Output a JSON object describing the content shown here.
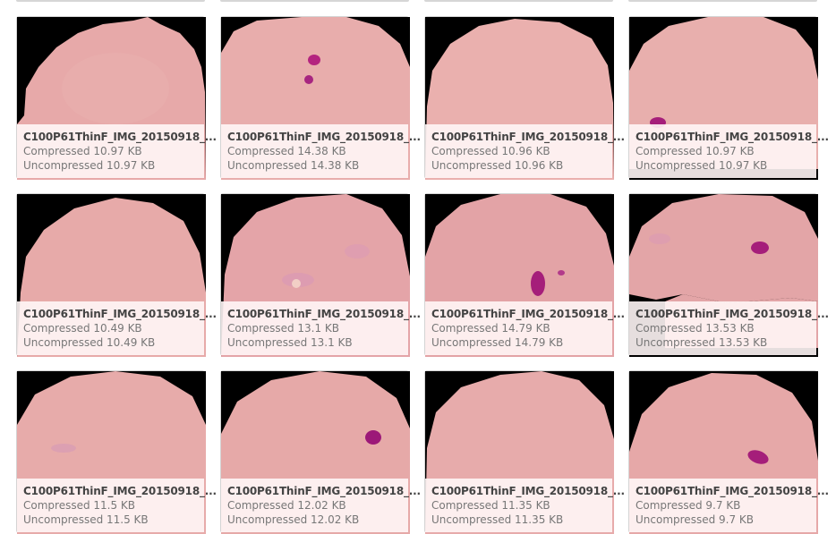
{
  "gallery": {
    "items": [
      {
        "name": "C100P61ThinF_IMG_20150918_...",
        "compressed": "Compressed 10.97 KB",
        "uncompressed": "Uncompressed 10.97 KB",
        "parasite_spots": 0
      },
      {
        "name": "C100P61ThinF_IMG_20150918_...",
        "compressed": "Compressed 14.38 KB",
        "uncompressed": "Uncompressed 14.38 KB",
        "parasite_spots": 2
      },
      {
        "name": "C100P61ThinF_IMG_20150918_...",
        "compressed": "Compressed 10.96 KB",
        "uncompressed": "Uncompressed 10.96 KB",
        "parasite_spots": 0
      },
      {
        "name": "C100P61ThinF_IMG_20150918_...",
        "compressed": "Compressed 10.97 KB",
        "uncompressed": "Uncompressed 10.97 KB",
        "parasite_spots": 1
      },
      {
        "name": "C100P61ThinF_IMG_20150918_...",
        "compressed": "Compressed 10.49 KB",
        "uncompressed": "Uncompressed 10.49 KB",
        "parasite_spots": 0
      },
      {
        "name": "C100P61ThinF_IMG_20150918_...",
        "compressed": "Compressed 13.1 KB",
        "uncompressed": "Uncompressed 13.1 KB",
        "parasite_spots": 0
      },
      {
        "name": "C100P61ThinF_IMG_20150918_...",
        "compressed": "Compressed 14.79 KB",
        "uncompressed": "Uncompressed 14.79 KB",
        "parasite_spots": 2
      },
      {
        "name": "C100P61ThinF_IMG_20150918_...",
        "compressed": "Compressed 13.53 KB",
        "uncompressed": "Uncompressed 13.53 KB",
        "parasite_spots": 1
      },
      {
        "name": "C100P61ThinF_IMG_20150918_...",
        "compressed": "Compressed 11.5 KB",
        "uncompressed": "Uncompressed 11.5 KB",
        "parasite_spots": 0
      },
      {
        "name": "C100P61ThinF_IMG_20150918_...",
        "compressed": "Compressed 12.02 KB",
        "uncompressed": "Uncompressed 12.02 KB",
        "parasite_spots": 1
      },
      {
        "name": "C100P61ThinF_IMG_20150918_...",
        "compressed": "Compressed 11.35 KB",
        "uncompressed": "Uncompressed 11.35 KB",
        "parasite_spots": 0
      },
      {
        "name": "C100P61ThinF_IMG_20150918_...",
        "compressed": "Compressed 9.7 KB",
        "uncompressed": "Uncompressed 9.7 KB",
        "parasite_spots": 1
      }
    ]
  },
  "colors": {
    "cell": "#e7a9a9",
    "cell_light": "#eec0bd",
    "background": "#000000",
    "parasite": "#a51e7a",
    "caption_bg": "#eaeaea"
  }
}
